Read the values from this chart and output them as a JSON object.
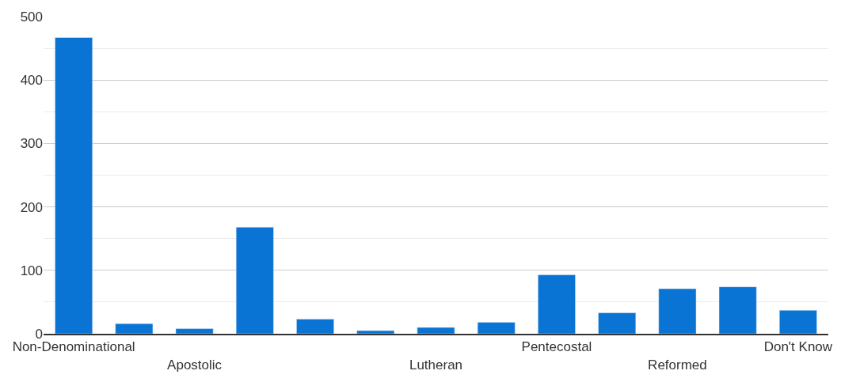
{
  "chart_data": {
    "type": "bar",
    "categories": [
      "Non-Denominational",
      null,
      "Apostolic",
      null,
      null,
      null,
      "Lutheran",
      null,
      "Pentecostal",
      null,
      "Reformed",
      null,
      "Don't Know"
    ],
    "values": [
      467,
      16,
      8,
      168,
      23,
      5,
      10,
      18,
      93,
      33,
      71,
      74,
      37
    ],
    "color": "#0a74d4",
    "ylim": [
      0,
      500
    ],
    "yticks": [
      0,
      100,
      200,
      300,
      400,
      500
    ],
    "grid": "y",
    "legend": false
  }
}
